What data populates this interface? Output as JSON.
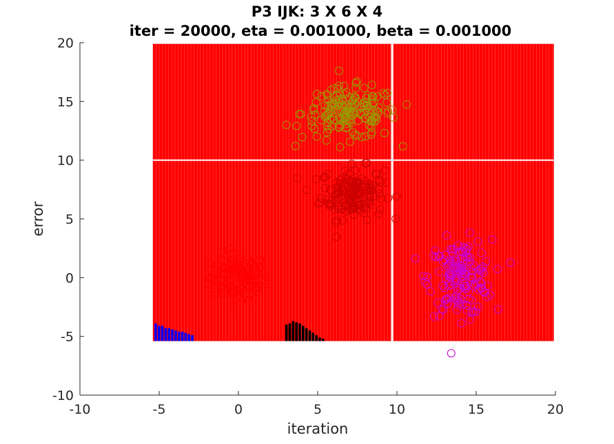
{
  "chart_data": {
    "type": "scatter",
    "title_lines": [
      "P3 IJK: 3 X 6 X 4",
      "iter = 20000, eta = 0.001000, beta = 0.001000"
    ],
    "xlabel": "iteration",
    "ylabel": "error",
    "xlim": [
      -10,
      20
    ],
    "ylim": [
      -10,
      20
    ],
    "x_ticks": [
      -10,
      -5,
      0,
      5,
      10,
      15,
      20
    ],
    "y_ticks": [
      -10,
      -5,
      0,
      5,
      10,
      15,
      20
    ],
    "x_tick_labels": [
      "-10",
      "-5",
      "0",
      "5",
      "10",
      "15",
      "20"
    ],
    "y_tick_labels": [
      "-10",
      "-5",
      "0",
      "5",
      "10",
      "15",
      "20"
    ],
    "grid": false,
    "background_region": {
      "x_range": [
        -5.4,
        19.9
      ],
      "y_range": [
        -5.4,
        19.9
      ],
      "color": "#ff0000",
      "gaps_x": [
        9.7
      ],
      "gaps_y": [
        10.0
      ],
      "column_step": 0.2
    },
    "bar_clusters": [
      {
        "color": "#0000ff",
        "x_start": -5.3,
        "step": 0.21,
        "tops": [
          -3.9,
          -4.1,
          -4.1,
          -4.3,
          -4.3,
          -4.4,
          -4.5,
          -4.6,
          -4.6,
          -4.7,
          -4.8,
          -4.9
        ]
      },
      {
        "color": "#000000",
        "x_start": 2.95,
        "step": 0.21,
        "tops": [
          -4.0,
          -3.9,
          -3.7,
          -3.8,
          -3.9,
          -4.1,
          -4.3,
          -4.5,
          -4.7,
          -4.9,
          -5.1,
          -5.2
        ]
      }
    ],
    "bar_base": -5.4,
    "series": [
      {
        "color": "#ff0000",
        "center": [
          0.0,
          0.0
        ],
        "spread": [
          0.9,
          1.0
        ],
        "count": 120
      },
      {
        "color": "#cc0000",
        "center": [
          7.2,
          7.2
        ],
        "spread": [
          1.0,
          1.1
        ],
        "count": 160
      },
      {
        "color": "#999900",
        "center": [
          7.0,
          14.0
        ],
        "spread": [
          1.5,
          1.1
        ],
        "count": 180
      },
      {
        "color": "#cc00cc",
        "center": [
          14.0,
          0.0
        ],
        "spread": [
          1.0,
          1.6
        ],
        "count": 160
      }
    ],
    "marker": "circle"
  }
}
